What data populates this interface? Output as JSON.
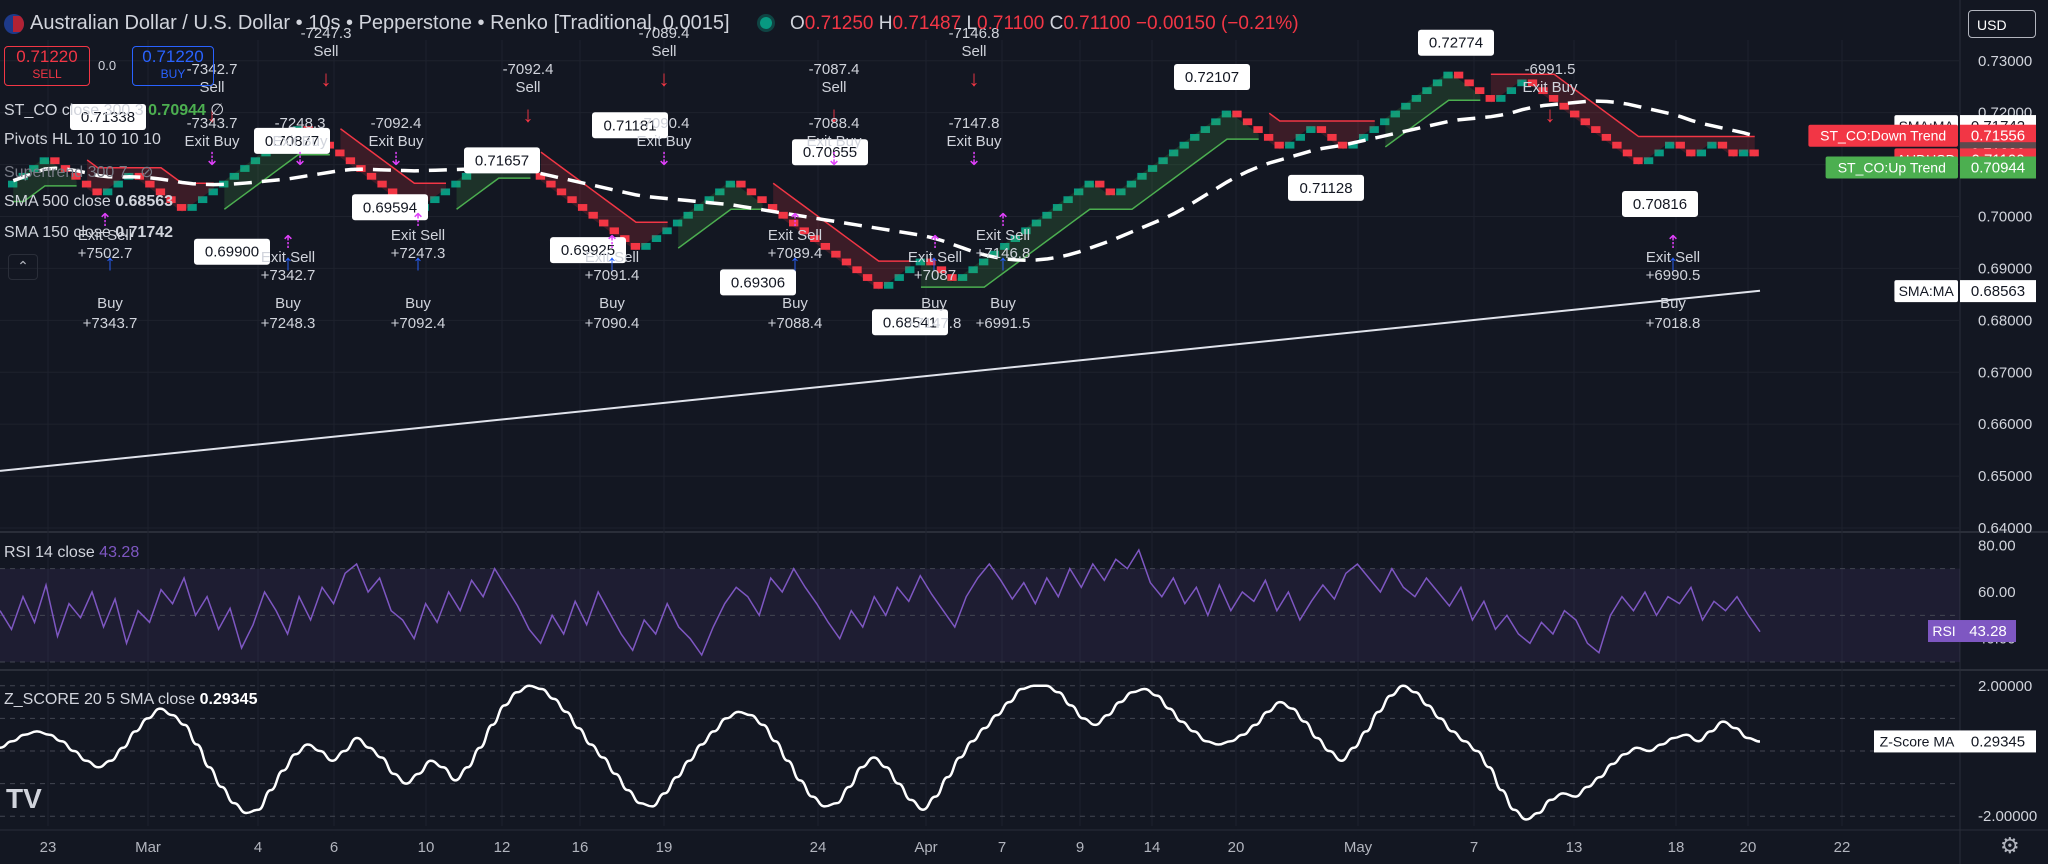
{
  "header": {
    "title": "Australian Dollar / U.S. Dollar • 10s • Pepperstone • Renko [Traditional, 0.0015]",
    "ohlc": [
      {
        "label": "O",
        "value": "0.71250"
      },
      {
        "label": "H",
        "value": "0.71487"
      },
      {
        "label": "L",
        "value": "0.71100"
      },
      {
        "label": "C",
        "value": "0.71100"
      }
    ],
    "change": "−0.00150 (−0.21%)",
    "sell_price": "0.71220",
    "sell_label": "SELL",
    "spread": "0.0",
    "buy_price": "0.71220",
    "buy_label": "BUY",
    "currency": "USD"
  },
  "legends": {
    "st_co": {
      "label": "ST_CO close 300 3",
      "value": "0.70944",
      "extra": "∅"
    },
    "pivots": {
      "label": "Pivots HL 10 10 10 10"
    },
    "supertrend": {
      "label": "Supertrend 300 7"
    },
    "sma500": {
      "label": "SMA 500 close",
      "value": "0.68563"
    },
    "sma150": {
      "label": "SMA 150 close",
      "value": "0.71742"
    },
    "rsi": {
      "label": "RSI 14 close",
      "value": "43.28"
    },
    "zscore": {
      "label": "Z_SCORE 20 5 SMA close",
      "value": "0.29345"
    }
  },
  "colors": {
    "background": "#131722",
    "up_brick": "#089981",
    "down_brick": "#f23645",
    "buy_signal": "#2962ff",
    "exit_signal": "#e040fb",
    "sell_signal": "#f23645",
    "rsi_line": "#7e57c2",
    "grid": "#1e222d",
    "sma500": "#e0e3eb",
    "up_trend_line": "#4caf50",
    "down_trend_line": "#f23645"
  },
  "icons": [
    "flag-icon",
    "chevron-up-icon",
    "tradingview-logo-icon",
    "gear-icon",
    "eye-hidden-icon",
    "tv-dot-icon"
  ],
  "chart_data": {
    "type": "renko",
    "main": {
      "y_ticks": [
        "0.73000",
        "0.72000",
        "0.71000",
        "0.70000",
        "0.69000",
        "0.68000",
        "0.67000",
        "0.66000",
        "0.65000",
        "0.64000"
      ],
      "ylim": [
        0.64,
        0.734
      ],
      "x_ticks": [
        "23",
        "Mar",
        "4",
        "6",
        "10",
        "12",
        "16",
        "19",
        "24",
        "Apr",
        "7",
        "9",
        "14",
        "20",
        "May",
        "7",
        "13",
        "18",
        "20",
        "22"
      ],
      "brick_size": 0.0015,
      "renko_path": [
        0.7069,
        0.7084,
        0.7099,
        0.7114,
        0.7099,
        0.7084,
        0.7069,
        0.7054,
        0.7039,
        0.7054,
        0.7069,
        0.7084,
        0.7069,
        0.7054,
        0.7039,
        0.7024,
        0.7009,
        0.7024,
        0.7039,
        0.7054,
        0.7069,
        0.7084,
        0.7099,
        0.7114,
        0.7129,
        0.7144,
        0.7159,
        0.7174,
        0.7159,
        0.7144,
        0.7129,
        0.7114,
        0.7099,
        0.7084,
        0.7069,
        0.7054,
        0.7039,
        0.7024,
        0.7009,
        0.7024,
        0.7039,
        0.7054,
        0.7069,
        0.7084,
        0.7099,
        0.7114,
        0.7129,
        0.7114,
        0.7099,
        0.7084,
        0.7069,
        0.7054,
        0.7039,
        0.7024,
        0.7009,
        0.6994,
        0.6979,
        0.6964,
        0.6949,
        0.6934,
        0.6949,
        0.6964,
        0.6979,
        0.6994,
        0.7009,
        0.7024,
        0.7039,
        0.7054,
        0.7069,
        0.7054,
        0.7039,
        0.7024,
        0.7009,
        0.6994,
        0.6979,
        0.6964,
        0.6949,
        0.6934,
        0.6919,
        0.6904,
        0.6889,
        0.6874,
        0.6859,
        0.6874,
        0.6889,
        0.6904,
        0.6919,
        0.6904,
        0.6889,
        0.6874,
        0.6889,
        0.6904,
        0.6919,
        0.6934,
        0.6949,
        0.6964,
        0.6979,
        0.6994,
        0.7009,
        0.7024,
        0.7039,
        0.7054,
        0.7069,
        0.7054,
        0.7039,
        0.7054,
        0.7069,
        0.7084,
        0.7099,
        0.7114,
        0.7129,
        0.7144,
        0.7159,
        0.7174,
        0.7189,
        0.7204,
        0.7189,
        0.7174,
        0.7159,
        0.7144,
        0.7129,
        0.7144,
        0.7159,
        0.7174,
        0.7159,
        0.7144,
        0.7129,
        0.7144,
        0.7159,
        0.7174,
        0.7189,
        0.7204,
        0.7219,
        0.7234,
        0.7249,
        0.7264,
        0.7279,
        0.7264,
        0.7249,
        0.7234,
        0.7219,
        0.7234,
        0.7249,
        0.7264,
        0.7249,
        0.7234,
        0.7219,
        0.7204,
        0.7189,
        0.7174,
        0.7159,
        0.7144,
        0.7129,
        0.7114,
        0.7099,
        0.7114,
        0.7129,
        0.7144,
        0.7129,
        0.7114,
        0.7129,
        0.7144,
        0.7129,
        0.7114,
        0.7129,
        0.7114
      ],
      "sma500": {
        "start": 0.651,
        "end": 0.6857
      },
      "pivot_labels": [
        {
          "text": "0.71338",
          "x": 0.7133,
          "y": 0.7134
        },
        {
          "text": "0.69900",
          "y": 0.699
        },
        {
          "text": "0.70877",
          "y": 0.7088
        },
        {
          "text": "0.71657",
          "y": 0.7166
        },
        {
          "text": "0.69594",
          "y": 0.696
        },
        {
          "text": "0.69925",
          "y": 0.6993
        },
        {
          "text": "0.71181",
          "y": 0.7118
        },
        {
          "text": "0.69306",
          "y": 0.6931
        },
        {
          "text": "0.70655",
          "y": 0.7066
        },
        {
          "text": "0.68541",
          "y": 0.6854
        },
        {
          "text": "0.72107",
          "y": 0.7211
        },
        {
          "text": "0.71128",
          "y": 0.7113
        },
        {
          "text": "0.72774",
          "y": 0.7277
        },
        {
          "text": "0.70816",
          "y": 0.7082
        }
      ],
      "trade_labels": [
        {
          "kind": "buy",
          "text": "Buy\n+7343.7"
        },
        {
          "kind": "buy",
          "text": "Buy\n+7248.3"
        },
        {
          "kind": "buy",
          "text": "Buy\n+7092.4"
        },
        {
          "kind": "buy",
          "text": "Buy\n+7090.4"
        },
        {
          "kind": "buy",
          "text": "Buy\n+7088.4"
        },
        {
          "kind": "buy",
          "text": "Buy\n+7147.8"
        },
        {
          "kind": "buy",
          "text": "Buy\n+6991.5"
        },
        {
          "kind": "buy",
          "text": "Buy\n+7018.8"
        },
        {
          "kind": "sell",
          "text": "-7342.7\nSell"
        },
        {
          "kind": "sell",
          "text": "-7247.3\nSell"
        },
        {
          "kind": "sell",
          "text": "-7092.4\nSell"
        },
        {
          "kind": "sell",
          "text": "-7089.4\nSell"
        },
        {
          "kind": "sell",
          "text": "-7087.4\nSell"
        },
        {
          "kind": "sell",
          "text": "-7146.8\nSell"
        },
        {
          "kind": "sell",
          "text": "-6991.5\nExit Buy"
        },
        {
          "kind": "exit",
          "text": "Exit Sell\n+7502.7"
        },
        {
          "kind": "exit",
          "text": "Exit Sell\n+7342.7"
        },
        {
          "kind": "exit",
          "text": "Exit Sell\n+7247.3"
        },
        {
          "kind": "exit",
          "text": "Exit Sell\n+7091.4"
        },
        {
          "kind": "exit",
          "text": "Exit Sell\n+7089.4"
        },
        {
          "kind": "exit",
          "text": "Exit Sell\n+7087"
        },
        {
          "kind": "exit",
          "text": "Exit Sell\n+7146.8"
        },
        {
          "kind": "exit",
          "text": "Exit Sell\n+6990.5"
        },
        {
          "kind": "exitbuy",
          "text": "-7343.7\nExit Buy"
        },
        {
          "kind": "exitbuy",
          "text": "-7248.3\nExit Buy"
        },
        {
          "kind": "exitbuy",
          "text": "-7092.4\nExit Buy"
        },
        {
          "kind": "exitbuy",
          "text": "-7090.4\nExit Buy"
        },
        {
          "kind": "exitbuy",
          "text": "-7088.4\nExit Buy"
        },
        {
          "kind": "exitbuy",
          "text": "-7147.8\nExit Buy"
        }
      ],
      "price_labels": [
        {
          "text": "SMA:MA",
          "value": "0.71742",
          "bg": "#ffffff",
          "fg": "#131722",
          "y": 0.71742
        },
        {
          "text": "ST_CO:Down Trend",
          "value": "0.71556",
          "bg": "#f23645",
          "fg": "#ffffff",
          "y": 0.71556
        },
        {
          "text": "",
          "value": "0.71220",
          "bg": "#5d4a4e",
          "fg": "#ffffff",
          "y": 0.7122
        },
        {
          "text": "AUDUSD",
          "value": "0.71100",
          "bg": "#f23645",
          "fg": "#ffffff",
          "y": 0.711
        },
        {
          "text": "ST_CO:Up Trend",
          "value": "0.70944",
          "bg": "#4caf50",
          "fg": "#ffffff",
          "y": 0.70944
        },
        {
          "text": "SMA:MA",
          "value": "0.68563",
          "bg": "#ffffff",
          "fg": "#131722",
          "y": 0.68563
        }
      ]
    },
    "rsi": {
      "y_ticks": [
        "80.00",
        "60.00",
        "40.00"
      ],
      "ylim": [
        30,
        84
      ],
      "levels": [
        70,
        50,
        30
      ],
      "last_value": "43.28",
      "tag": "RSI",
      "values": [
        52,
        44,
        58,
        47,
        63,
        41,
        55,
        49,
        60,
        45,
        57,
        38,
        52,
        47,
        61,
        55,
        66,
        50,
        58,
        44,
        53,
        36,
        46,
        60,
        52,
        42,
        58,
        48,
        62,
        55,
        68,
        72,
        60,
        66,
        52,
        48,
        40,
        55,
        47,
        60,
        52,
        65,
        58,
        70,
        62,
        54,
        44,
        38,
        50,
        42,
        56,
        46,
        60,
        51,
        42,
        35,
        48,
        42,
        55,
        45,
        40,
        33,
        45,
        55,
        62,
        58,
        50,
        66,
        60,
        70,
        62,
        55,
        47,
        40,
        52,
        45,
        58,
        50,
        62,
        56,
        67,
        59,
        52,
        45,
        58,
        66,
        72,
        65,
        57,
        64,
        55,
        66,
        58,
        70,
        62,
        72,
        65,
        74,
        70,
        78,
        64,
        58,
        66,
        55,
        62,
        50,
        63,
        52,
        60,
        56,
        65,
        52,
        60,
        48,
        56,
        63,
        57,
        68,
        72,
        66,
        60,
        70,
        62,
        58,
        66,
        60,
        54,
        62,
        48,
        56,
        44,
        50,
        42,
        38,
        47,
        42,
        52,
        48,
        38,
        34,
        50,
        58,
        52,
        60,
        50,
        58,
        55,
        62,
        48,
        56,
        52,
        58,
        50,
        43
      ]
    },
    "zscore": {
      "y_ticks": [
        "2.00000",
        "-2.00000"
      ],
      "ylim": [
        -2.3,
        2.3
      ],
      "levels": [
        2,
        1,
        0,
        -1,
        -2
      ],
      "last_value": "0.29345",
      "tag": "Z-Score MA",
      "values": [
        0.1,
        0.3,
        0.5,
        0.6,
        0.5,
        0.3,
        0.0,
        -0.3,
        -0.5,
        -0.3,
        0.1,
        0.6,
        1.0,
        1.3,
        1.1,
        0.8,
        0.2,
        -0.5,
        -1.1,
        -1.6,
        -1.9,
        -1.8,
        -1.2,
        -0.6,
        -0.1,
        0.2,
        0.0,
        -0.3,
        0.0,
        0.4,
        0.1,
        -0.2,
        -0.7,
        -1.0,
        -0.7,
        -0.3,
        -0.5,
        -0.9,
        -0.5,
        0.1,
        0.8,
        1.4,
        1.8,
        2.0,
        1.9,
        1.6,
        1.2,
        0.7,
        0.2,
        -0.2,
        -0.7,
        -1.2,
        -1.6,
        -1.7,
        -1.3,
        -0.8,
        -0.3,
        0.2,
        0.6,
        1.0,
        1.2,
        1.1,
        0.8,
        0.3,
        -0.3,
        -0.9,
        -1.4,
        -1.7,
        -1.6,
        -1.1,
        -0.5,
        -0.2,
        -0.5,
        -1.0,
        -1.5,
        -1.8,
        -1.4,
        -0.8,
        -0.2,
        0.3,
        0.7,
        1.1,
        1.5,
        1.9,
        2.0,
        2.0,
        1.8,
        1.4,
        1.0,
        0.8,
        1.1,
        1.5,
        1.8,
        1.9,
        1.7,
        1.3,
        0.9,
        0.6,
        0.3,
        0.2,
        0.3,
        0.5,
        0.8,
        1.2,
        1.5,
        1.3,
        0.9,
        0.4,
        0.0,
        -0.3,
        0.1,
        0.6,
        1.2,
        1.7,
        2.0,
        1.8,
        1.4,
        1.0,
        0.6,
        0.3,
        0.0,
        -0.5,
        -1.2,
        -1.8,
        -2.1,
        -1.9,
        -1.5,
        -1.3,
        -1.4,
        -1.1,
        -0.8,
        -0.4,
        -0.1,
        0.1,
        0.0,
        0.2,
        0.4,
        0.5,
        0.3,
        0.6,
        0.9,
        0.7,
        0.4,
        0.29
      ]
    }
  }
}
